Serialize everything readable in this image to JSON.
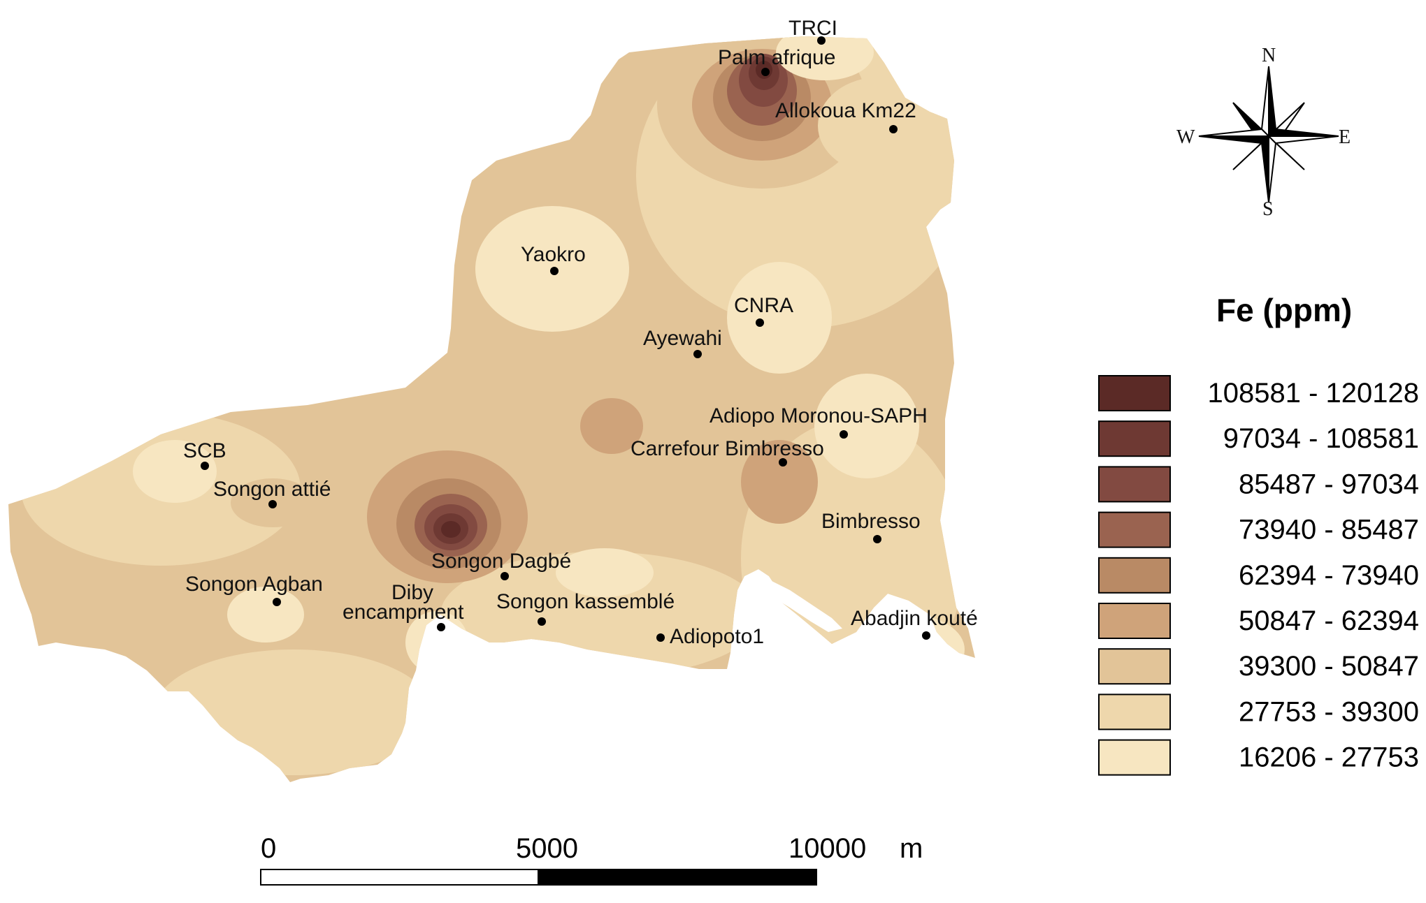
{
  "legend": {
    "title": "Fe (ppm)",
    "classes": [
      {
        "range": "108581 - 120128",
        "color": "#5b2a26"
      },
      {
        "range": "97034 - 108581",
        "color": "#6e3933"
      },
      {
        "range": "85487 - 97034",
        "color": "#824a41"
      },
      {
        "range": "73940 - 85487",
        "color": "#9a6350"
      },
      {
        "range": "62394 - 73940",
        "color": "#b98a65"
      },
      {
        "range": "50847 - 62394",
        "color": "#cfa37a"
      },
      {
        "range": "39300 - 50847",
        "color": "#e2c498"
      },
      {
        "range": "27753 - 39300",
        "color": "#eed7ac"
      },
      {
        "range": "16206 - 27753",
        "color": "#f7e6c1"
      }
    ]
  },
  "scale_bar": {
    "labels": [
      "0",
      "5000",
      "10000"
    ],
    "unit": "m"
  },
  "compass": {
    "north": "N",
    "south": "S",
    "east": "E",
    "west": "W"
  },
  "sites": [
    {
      "name": "TRCI"
    },
    {
      "name": "Palm afrique"
    },
    {
      "name": "Allokoua Km22"
    },
    {
      "name": "Yaokro"
    },
    {
      "name": "CNRA"
    },
    {
      "name": "Ayewahi"
    },
    {
      "name": "Adiopo Moronou-SAPH"
    },
    {
      "name": "Carrefour Bimbresso"
    },
    {
      "name": "SCB"
    },
    {
      "name": "Songon attié"
    },
    {
      "name": "Bimbresso"
    },
    {
      "name": "Songon Dagbé"
    },
    {
      "name": "Songon Agban"
    },
    {
      "name": "Diby"
    },
    {
      "name": "encampment"
    },
    {
      "name": "Songon kassemblé"
    },
    {
      "name": "Adiopoto1"
    },
    {
      "name": "Abadjin kouté"
    }
  ]
}
